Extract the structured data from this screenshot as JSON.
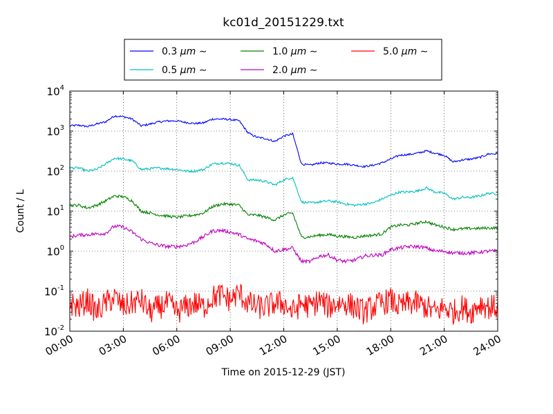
{
  "chart_data": {
    "type": "line",
    "title": "kc01d_20151229.txt",
    "xlabel": "Time on 2015-12-29 (JST)",
    "ylabel": "Count / L",
    "yscale": "log",
    "xlim": [
      "00:00",
      "24:00"
    ],
    "ylim": [
      0.01,
      10000
    ],
    "grid": true,
    "legend_position": "top",
    "x_ticks": [
      "00:00",
      "03:00",
      "06:00",
      "09:00",
      "12:00",
      "15:00",
      "18:00",
      "21:00",
      "24:00"
    ],
    "y_ticks": [
      {
        "base": "10",
        "exp": "-2",
        "value": 0.01
      },
      {
        "base": "10",
        "exp": "-1",
        "value": 0.1
      },
      {
        "base": "10",
        "exp": "0",
        "value": 1
      },
      {
        "base": "10",
        "exp": "1",
        "value": 10
      },
      {
        "base": "10",
        "exp": "2",
        "value": 100
      },
      {
        "base": "10",
        "exp": "3",
        "value": 1000
      },
      {
        "base": "10",
        "exp": "4",
        "value": 10000
      }
    ],
    "x": [
      "00:00",
      "00:30",
      "01:00",
      "01:30",
      "02:00",
      "02:30",
      "03:00",
      "03:30",
      "04:00",
      "04:30",
      "05:00",
      "05:30",
      "06:00",
      "06:30",
      "07:00",
      "07:30",
      "08:00",
      "08:30",
      "09:00",
      "09:30",
      "10:00",
      "10:30",
      "11:00",
      "11:30",
      "12:00",
      "12:30",
      "13:00",
      "13:30",
      "14:00",
      "14:30",
      "15:00",
      "15:30",
      "16:00",
      "16:30",
      "17:00",
      "17:30",
      "18:00",
      "18:30",
      "19:00",
      "19:30",
      "20:00",
      "20:30",
      "21:00",
      "21:30",
      "22:00",
      "22:30",
      "23:00",
      "23:30",
      "24:00"
    ],
    "series": [
      {
        "name_prefix": "0.3",
        "name_suffix": "μm",
        "color": "#0000ff",
        "values": [
          1350,
          1400,
          1300,
          1500,
          1700,
          2400,
          2300,
          2000,
          1350,
          1500,
          1700,
          1800,
          1800,
          1650,
          1550,
          1600,
          2000,
          2000,
          1950,
          1800,
          900,
          700,
          650,
          550,
          750,
          850,
          150,
          140,
          160,
          160,
          150,
          150,
          140,
          130,
          140,
          160,
          200,
          250,
          260,
          280,
          320,
          280,
          250,
          170,
          190,
          200,
          220,
          270,
          270
        ]
      },
      {
        "name_prefix": "0.5",
        "name_suffix": "μm",
        "color": "#00bfbf",
        "values": [
          120,
          120,
          100,
          110,
          150,
          210,
          200,
          180,
          110,
          115,
          120,
          115,
          110,
          100,
          100,
          110,
          150,
          160,
          155,
          140,
          60,
          60,
          55,
          45,
          60,
          70,
          17,
          16,
          17,
          18,
          17,
          15,
          14,
          15,
          16,
          20,
          25,
          30,
          30,
          32,
          38,
          30,
          28,
          20,
          22,
          22,
          24,
          28,
          27
        ]
      },
      {
        "name_prefix": "1.0",
        "name_suffix": "μm",
        "color": "#008000",
        "values": [
          14,
          14,
          12,
          14,
          18,
          24,
          23,
          18,
          10,
          9,
          8,
          7.5,
          7,
          7.5,
          8,
          9,
          13,
          15,
          15,
          14,
          8,
          8,
          7,
          6,
          8,
          9,
          2.2,
          2.3,
          2.5,
          2.6,
          2.4,
          2.3,
          2.2,
          2.4,
          2.5,
          2.7,
          4,
          4.5,
          4.5,
          5,
          5.5,
          4.5,
          4,
          3.5,
          3.6,
          3.7,
          3.7,
          3.8,
          3.8
        ]
      },
      {
        "name_prefix": "2.0",
        "name_suffix": "μm",
        "color": "#bf00bf",
        "values": [
          2.3,
          2.5,
          2.6,
          2.7,
          2.8,
          4.2,
          4,
          3,
          2,
          1.6,
          1.4,
          1.3,
          1.3,
          1.4,
          1.7,
          2.3,
          3.2,
          3.3,
          3.0,
          2.6,
          2.0,
          1.8,
          1.5,
          1.0,
          1.1,
          1.2,
          0.55,
          0.55,
          0.75,
          0.8,
          0.6,
          0.55,
          0.6,
          0.75,
          0.8,
          0.8,
          1.1,
          1.2,
          1.3,
          1.3,
          1.2,
          1.0,
          1.0,
          0.9,
          0.9,
          0.9,
          0.95,
          1.0,
          1.0
        ]
      },
      {
        "name_prefix": "5.0",
        "name_suffix": "μm",
        "color": "#ff0000",
        "values": [
          0.05,
          0.04,
          0.06,
          0.03,
          0.05,
          0.07,
          0.04,
          0.05,
          0.06,
          0.03,
          0.04,
          0.05,
          0.03,
          0.04,
          0.05,
          0.04,
          0.07,
          0.08,
          0.06,
          0.09,
          0.05,
          0.04,
          0.04,
          0.05,
          0.05,
          0.03,
          0.05,
          0.04,
          0.06,
          0.04,
          0.05,
          0.05,
          0.04,
          0.03,
          0.04,
          0.05,
          0.06,
          0.04,
          0.05,
          0.05,
          0.04,
          0.03,
          0.04,
          0.03,
          0.04,
          0.03,
          0.05,
          0.04,
          0.04
        ]
      }
    ]
  }
}
